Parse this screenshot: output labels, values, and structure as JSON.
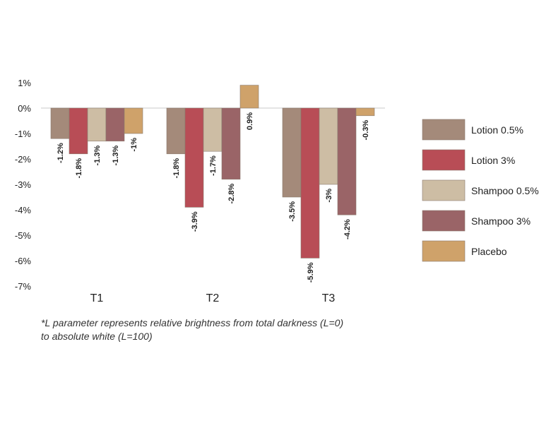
{
  "chart_data": {
    "type": "bar",
    "categories": [
      "T1",
      "T2",
      "T3"
    ],
    "series": [
      {
        "name": "Lotion 0.5%",
        "color": "#a48a7a",
        "values": [
          -1.2,
          -1.8,
          -3.5
        ],
        "labels": [
          "-1.2%",
          "-1.8%",
          "-3.5%"
        ]
      },
      {
        "name": "Lotion 3%",
        "color": "#b84d56",
        "values": [
          -1.8,
          -3.9,
          -5.9
        ],
        "labels": [
          "-1.8%",
          "-3.9%",
          "-5.9%"
        ]
      },
      {
        "name": "Shampoo 0.5%",
        "color": "#cdbda4",
        "values": [
          -1.3,
          -1.7,
          -3.0
        ],
        "labels": [
          "-1.3%",
          "-1.7%",
          "-3%"
        ]
      },
      {
        "name": "Shampoo 3%",
        "color": "#9a6467",
        "values": [
          -1.3,
          -2.8,
          -4.2
        ],
        "labels": [
          "-1.3%",
          "-2.8%",
          "-4.2%"
        ]
      },
      {
        "name": "Placebo",
        "color": "#cfa26a",
        "values": [
          -1.0,
          0.9,
          -0.3
        ],
        "labels": [
          "-1%",
          "0.9%",
          "-0.3%"
        ]
      }
    ],
    "yticks": [
      1,
      0,
      -1,
      -2,
      -3,
      -4,
      -5,
      -6,
      -7
    ],
    "ytick_labels": [
      "1%",
      "0%",
      "-1%",
      "-2%",
      "-3%",
      "-4%",
      "-5%",
      "-6%",
      "-7%"
    ],
    "ylim": [
      -7,
      1
    ],
    "legend_position": "right",
    "grid": false
  },
  "footnote_lines": [
    "*L parameter represents relative brightness from total darkness (L=0)",
    "to absolute white (L=100)"
  ]
}
